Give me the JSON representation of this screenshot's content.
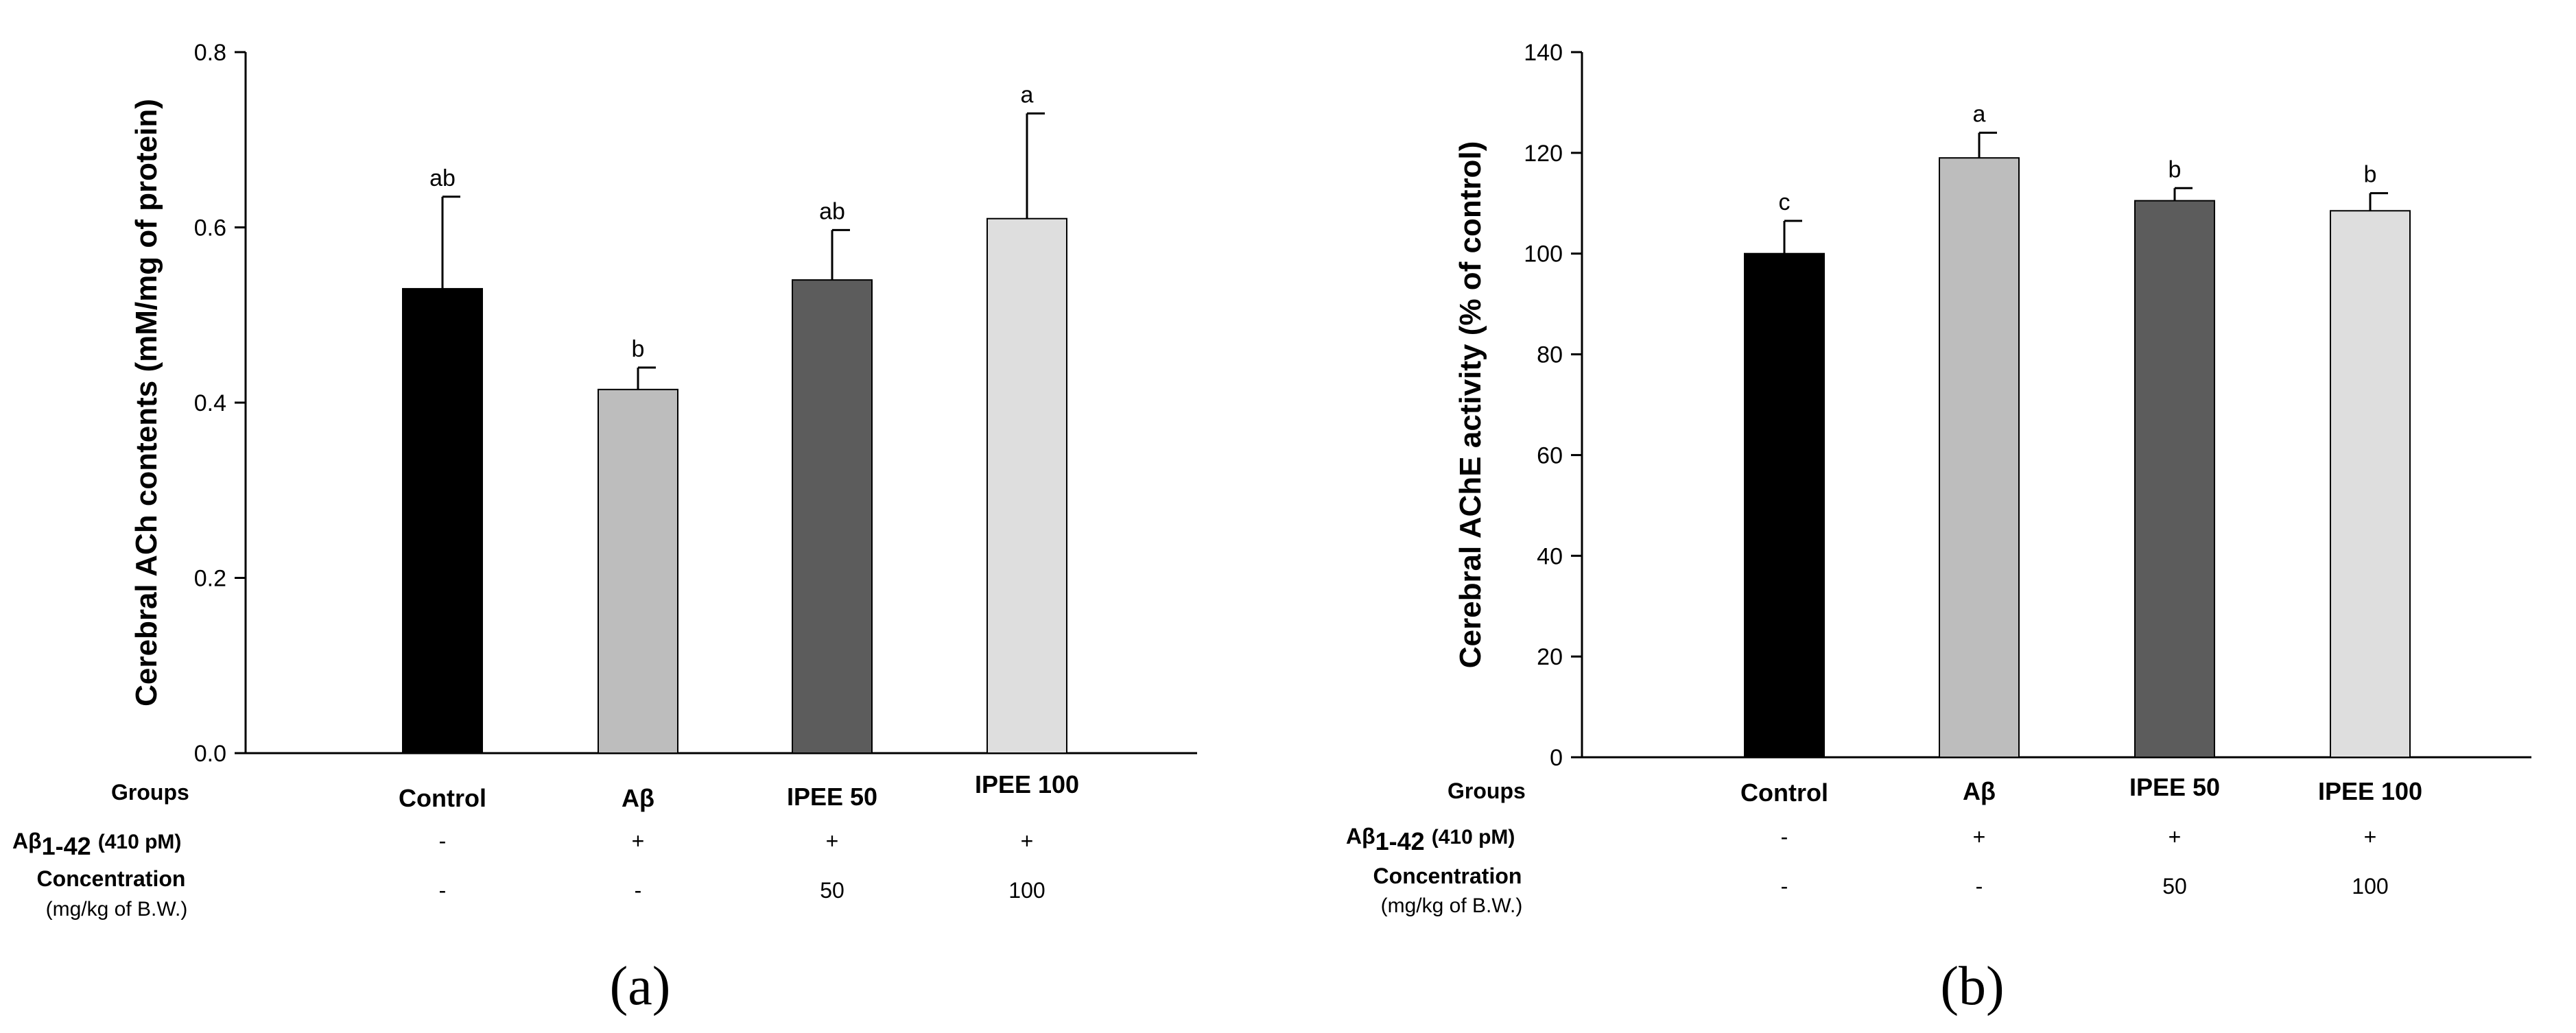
{
  "figure": {
    "panel_a_label": "(a)",
    "panel_b_label": "(b)"
  },
  "chart_data": [
    {
      "type": "bar",
      "panel": "a",
      "ylabel": "Cerebral ACh contents (mM/mg of protein)",
      "xlabel": "",
      "ylim": [
        0,
        0.8
      ],
      "yticks": [
        "0.0",
        "0.2",
        "0.4",
        "0.6",
        "0.8"
      ],
      "categories": [
        "Control",
        "Aβ",
        "IPEE 50",
        "IPEE 100"
      ],
      "values": [
        0.53,
        0.415,
        0.54,
        0.61
      ],
      "errors": [
        0.105,
        0.025,
        0.057,
        0.12
      ],
      "significance": [
        "ab",
        "b",
        "ab",
        "a"
      ],
      "colors": [
        "#000000",
        "#bdbdbd",
        "#5c5c5c",
        "#dedede"
      ],
      "table": {
        "groups_label": "Groups",
        "ab_label": "Aβ",
        "ab_sub": "1-42",
        "ab_dose": "(410 pM)",
        "ab_values": [
          "-",
          "+",
          "+",
          "+"
        ],
        "conc_label": "Concentration",
        "conc_unit": "(mg/kg of B.W.)",
        "conc_values": [
          "-",
          "-",
          "50",
          "100"
        ]
      }
    },
    {
      "type": "bar",
      "panel": "b",
      "ylabel": "Cerebral AChE activity (% of control)",
      "xlabel": "",
      "ylim": [
        0,
        140
      ],
      "yticks": [
        "0",
        "20",
        "40",
        "60",
        "80",
        "100",
        "120",
        "140"
      ],
      "categories": [
        "Control",
        "Aβ",
        "IPEE 50",
        "IPEE 100"
      ],
      "values": [
        100,
        119,
        110.5,
        108.5
      ],
      "errors": [
        6.5,
        5,
        2.5,
        3.5
      ],
      "significance": [
        "c",
        "a",
        "b",
        "b"
      ],
      "colors": [
        "#000000",
        "#bdbdbd",
        "#5c5c5c",
        "#dedede"
      ],
      "table": {
        "groups_label": "Groups",
        "ab_label": "Aβ",
        "ab_sub": "1-42",
        "ab_dose": "(410 pM)",
        "ab_values": [
          "-",
          "+",
          "+",
          "+"
        ],
        "conc_label": "Concentration",
        "conc_unit": "(mg/kg of B.W.)",
        "conc_values": [
          "-",
          "-",
          "50",
          "100"
        ]
      }
    }
  ]
}
